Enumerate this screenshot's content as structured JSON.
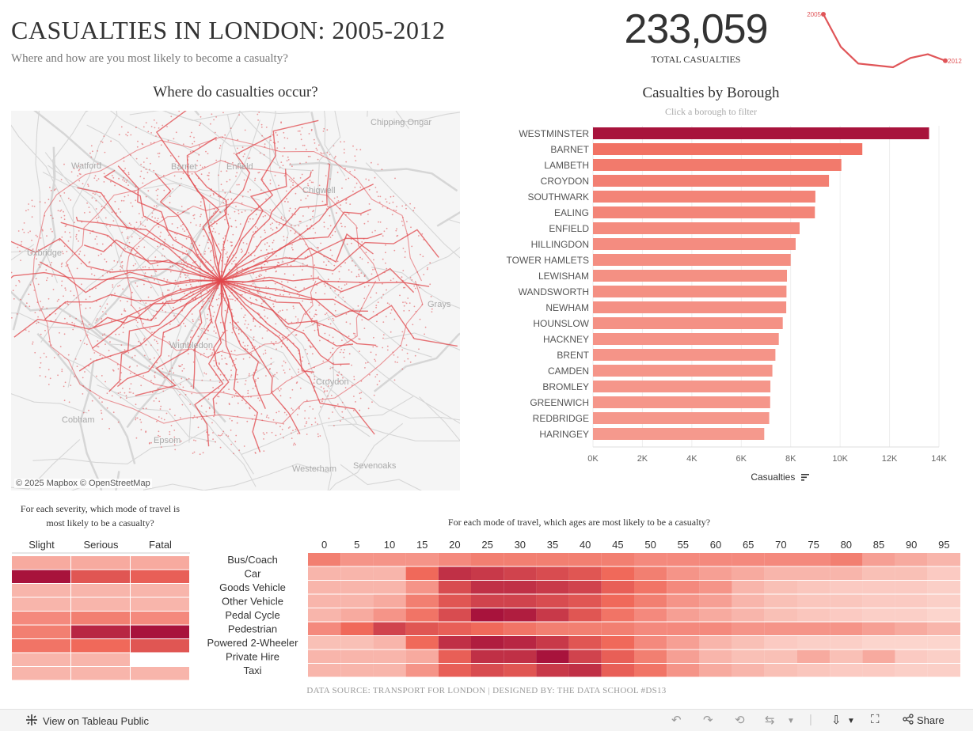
{
  "header": {
    "title": "CASUALTIES IN LONDON: 2005-2012",
    "subtitle": "Where and how are you most likely to become a casualty?"
  },
  "kpi": {
    "value": "233,059",
    "label": "TOTAL CASUALTIES",
    "spark_start_label": "2005",
    "spark_end_label": "2012",
    "spark_values": [
      34000,
      30500,
      28700,
      28500,
      28300,
      29300,
      29700,
      29000
    ]
  },
  "map": {
    "title": "Where do casualties occur?",
    "attribution": "© 2025 Mapbox  © OpenStreetMap",
    "place_labels": [
      "Watford",
      "Barnet",
      "Enfield",
      "Chigwell",
      "Chipping Ongar",
      "Uxbridge",
      "Grays",
      "Wimbledon",
      "Croydon",
      "Cobham",
      "Westerham",
      "Sevenoaks",
      "Epsom"
    ]
  },
  "bar_chart": {
    "title": "Casualties by Borough",
    "subtitle": "Click a borough to filter",
    "axis_title": "Casualties",
    "sort_icon": "sort-descending-icon"
  },
  "severity": {
    "title": "For each severity, which mode of travel is most likely to be a casualty?"
  },
  "age": {
    "title": "For each mode of travel, which ages are most likely to be a casualty?"
  },
  "footer": {
    "credit": "DATA SOURCE: TRANSPORT FOR LONDON  |  DESIGNED BY: THE DATA SCHOOL #DS13"
  },
  "toolbar": {
    "view_label": "View on Tableau Public",
    "share_label": "Share"
  },
  "colors": {
    "low": "#fde0d9",
    "mid": "#f0695a",
    "high": "#a8133c",
    "map_dots": "#e0464a"
  },
  "chart_data": [
    {
      "type": "bar",
      "title": "Casualties by Borough",
      "xlabel": "Casualties",
      "ylabel": "",
      "orientation": "horizontal",
      "xlim": [
        0,
        14000
      ],
      "tick_labels": [
        "0K",
        "2K",
        "4K",
        "6K",
        "8K",
        "10K",
        "12K",
        "14K"
      ],
      "categories": [
        "WESTMINSTER",
        "BARNET",
        "LAMBETH",
        "CROYDON",
        "SOUTHWARK",
        "EALING",
        "ENFIELD",
        "HILLINGDON",
        "TOWER HAMLETS",
        "LEWISHAM",
        "WANDSWORTH",
        "NEWHAM",
        "HOUNSLOW",
        "HACKNEY",
        "BRENT",
        "CAMDEN",
        "BROMLEY",
        "GREENWICH",
        "REDBRIDGE",
        "HARINGEY"
      ],
      "values": [
        13600,
        10900,
        10050,
        9550,
        9000,
        8980,
        8360,
        8200,
        8000,
        7850,
        7830,
        7820,
        7680,
        7520,
        7380,
        7260,
        7180,
        7170,
        7130,
        6930
      ]
    },
    {
      "type": "heatmap",
      "title": "For each severity, which mode of travel is most likely to be a casualty?",
      "columns": [
        "Slight",
        "Serious",
        "Fatal"
      ],
      "rows": [
        "Bus/Coach",
        "Car",
        "Goods Vehicle",
        "Other Vehicle",
        "Pedal Cycle",
        "Pedestrian",
        "Powered 2-Wheeler",
        "Private Hire",
        "Taxi"
      ],
      "values": [
        [
          0.25,
          0.25,
          0.25
        ],
        [
          1.0,
          0.65,
          0.6
        ],
        [
          0.2,
          0.2,
          0.2
        ],
        [
          0.2,
          0.2,
          0.2
        ],
        [
          0.4,
          0.45,
          0.4
        ],
        [
          0.45,
          0.9,
          1.0
        ],
        [
          0.5,
          0.55,
          0.65
        ],
        [
          0.2,
          0.2,
          null
        ],
        [
          0.2,
          0.2,
          0.2
        ]
      ]
    },
    {
      "type": "heatmap",
      "title": "For each mode of travel, which ages are most likely to be a casualty?",
      "columns": [
        "0",
        "5",
        "10",
        "15",
        "20",
        "25",
        "30",
        "35",
        "40",
        "45",
        "50",
        "55",
        "60",
        "65",
        "70",
        "75",
        "80",
        "85",
        "90",
        "95"
      ],
      "rows": [
        "Bus/Coach",
        "Car",
        "Goods Vehicle",
        "Other Vehicle",
        "Pedal Cycle",
        "Pedestrian",
        "Powered 2-Wheeler",
        "Private Hire",
        "Taxi"
      ],
      "values": [
        [
          0.45,
          0.35,
          0.35,
          0.35,
          0.4,
          0.45,
          0.45,
          0.45,
          0.45,
          0.45,
          0.4,
          0.4,
          0.4,
          0.4,
          0.4,
          0.4,
          0.45,
          0.3,
          0.25,
          0.2
        ],
        [
          0.2,
          0.2,
          0.2,
          0.55,
          0.85,
          0.8,
          0.75,
          0.7,
          0.65,
          0.55,
          0.45,
          0.35,
          0.3,
          0.25,
          0.2,
          0.2,
          0.2,
          0.15,
          0.15,
          0.1
        ],
        [
          0.2,
          0.2,
          0.2,
          0.35,
          0.7,
          0.85,
          0.85,
          0.8,
          0.75,
          0.6,
          0.5,
          0.4,
          0.35,
          0.2,
          0.15,
          0.12,
          0.1,
          0.1,
          0.1,
          0.08
        ],
        [
          0.2,
          0.2,
          0.25,
          0.45,
          0.65,
          0.75,
          0.75,
          0.7,
          0.65,
          0.55,
          0.45,
          0.35,
          0.3,
          0.2,
          0.15,
          0.12,
          0.12,
          0.1,
          0.1,
          0.08
        ],
        [
          0.2,
          0.25,
          0.35,
          0.5,
          0.7,
          1.0,
          0.95,
          0.8,
          0.65,
          0.5,
          0.4,
          0.3,
          0.25,
          0.2,
          0.15,
          0.12,
          0.1,
          0.08,
          0.08,
          0.05
        ],
        [
          0.4,
          0.55,
          0.75,
          0.65,
          0.6,
          0.55,
          0.5,
          0.45,
          0.45,
          0.45,
          0.4,
          0.4,
          0.4,
          0.35,
          0.35,
          0.35,
          0.35,
          0.3,
          0.25,
          0.2
        ],
        [
          0.15,
          0.15,
          0.2,
          0.55,
          0.85,
          0.95,
          0.9,
          0.8,
          0.65,
          0.55,
          0.4,
          0.3,
          0.2,
          0.15,
          0.1,
          0.08,
          0.08,
          0.05,
          0.05,
          0.05
        ],
        [
          0.2,
          0.2,
          0.2,
          0.25,
          0.6,
          0.85,
          0.85,
          1.0,
          0.75,
          0.6,
          0.45,
          0.3,
          0.2,
          0.15,
          0.15,
          0.25,
          0.15,
          0.25,
          0.1,
          0.08
        ],
        [
          0.2,
          0.2,
          0.2,
          0.35,
          0.6,
          0.7,
          0.65,
          0.8,
          0.85,
          0.6,
          0.5,
          0.35,
          0.25,
          0.2,
          0.15,
          0.12,
          0.1,
          0.1,
          0.08,
          0.08
        ]
      ]
    }
  ]
}
